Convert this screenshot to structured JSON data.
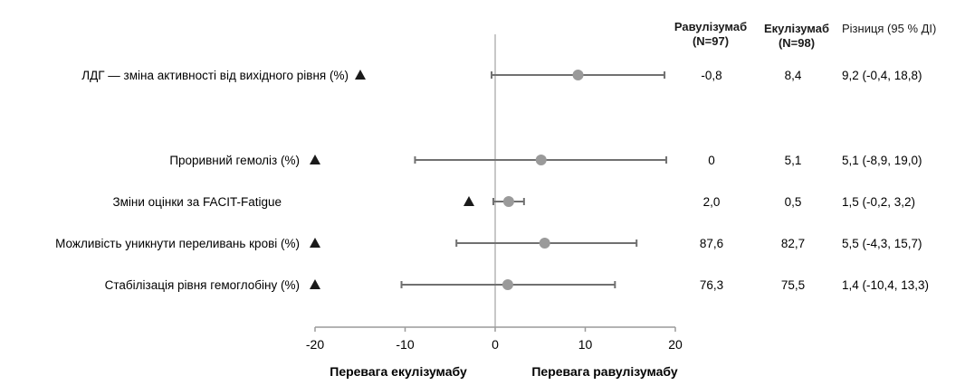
{
  "chart_data": {
    "type": "forest",
    "xlim": [
      -20,
      20
    ],
    "xticks": [
      "-20",
      "-10",
      "0",
      "10",
      "20"
    ],
    "columns": {
      "ravulizumab": {
        "name": "Равулізумаб",
        "n": "(N=97)"
      },
      "eculizumab": {
        "name": "Екулізумаб",
        "n": "(N=98)"
      },
      "difference": {
        "name": "Різниця (95 % ДІ)"
      }
    },
    "footer": {
      "left": "Перевага екулізумабу",
      "right": "Перевага равулізумабу"
    },
    "rows": [
      {
        "label": "ЛДГ — зміна активності від вихідного рівня (%)",
        "estimate": 9.2,
        "ci": [
          -0.4,
          18.8
        ],
        "ravulizumab": "-0,8",
        "eculizumab": "8,4",
        "difference": "9,2 (-0,4, 18,8)"
      },
      {
        "label": "Проривний гемоліз (%)",
        "estimate": 5.1,
        "ci": [
          -8.9,
          19.0
        ],
        "ravulizumab": "0",
        "eculizumab": "5,1",
        "difference": "5,1 (-8,9, 19,0)"
      },
      {
        "label": "Зміни оцінки за FACIT-Fatigue",
        "estimate": 1.5,
        "ci": [
          -0.2,
          3.2
        ],
        "ravulizumab": "2,0",
        "eculizumab": "0,5",
        "difference": "1,5 (-0,2, 3,2)"
      },
      {
        "label": "Можливість уникнути переливань крові (%)",
        "estimate": 5.5,
        "ci": [
          -4.3,
          15.7
        ],
        "ravulizumab": "87,6",
        "eculizumab": "82,7",
        "difference": "5,5 (-4,3, 15,7)"
      },
      {
        "label": "Стабілізація рівня гемоглобіну (%)",
        "estimate": 1.4,
        "ci": [
          -10.4,
          13.3
        ],
        "ravulizumab": "76,3",
        "eculizumab": "75,5",
        "difference": "1,4 (-10,4, 13,3)"
      }
    ]
  }
}
